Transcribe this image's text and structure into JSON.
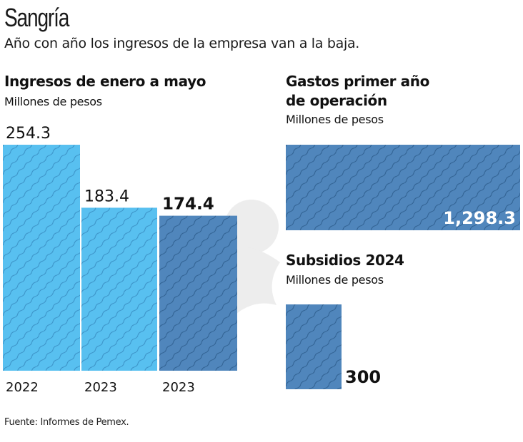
{
  "header": {
    "title": "Sangría",
    "subtitle": "Año con año los ingresos de la empresa van a la baja."
  },
  "source": "Fuente: Informes de Pemex.",
  "colors": {
    "light_bar": "#58c0f0",
    "dark_bar": "#5086bc",
    "hatch_light": "#3a8fc4",
    "hatch_dark": "#2f5f8f"
  },
  "chart_data": [
    {
      "type": "bar",
      "title": "Ingresos de enero a mayo",
      "subtitle": "Millones de pesos",
      "categories": [
        "2022",
        "2023",
        "2023"
      ],
      "values": [
        254.3,
        183.4,
        174.4
      ],
      "value_labels": [
        "254.3",
        "183.4",
        "174.4"
      ],
      "highlight_index": 2,
      "xlabel": "",
      "ylabel": "",
      "ylim": [
        0,
        254.3
      ],
      "grid": false
    },
    {
      "type": "bar",
      "title": "Gastos primer año de operación",
      "title_lines": [
        "Gastos primer año",
        "de operación"
      ],
      "subtitle": "Millones de pesos",
      "categories": [
        ""
      ],
      "values": [
        1298.3
      ],
      "value_labels": [
        "1,298.3"
      ],
      "orientation": "horizontal"
    },
    {
      "type": "bar",
      "title": "Subsidios 2024",
      "subtitle": "Millones de pesos",
      "categories": [
        ""
      ],
      "values": [
        300
      ],
      "value_labels": [
        "300"
      ]
    }
  ]
}
